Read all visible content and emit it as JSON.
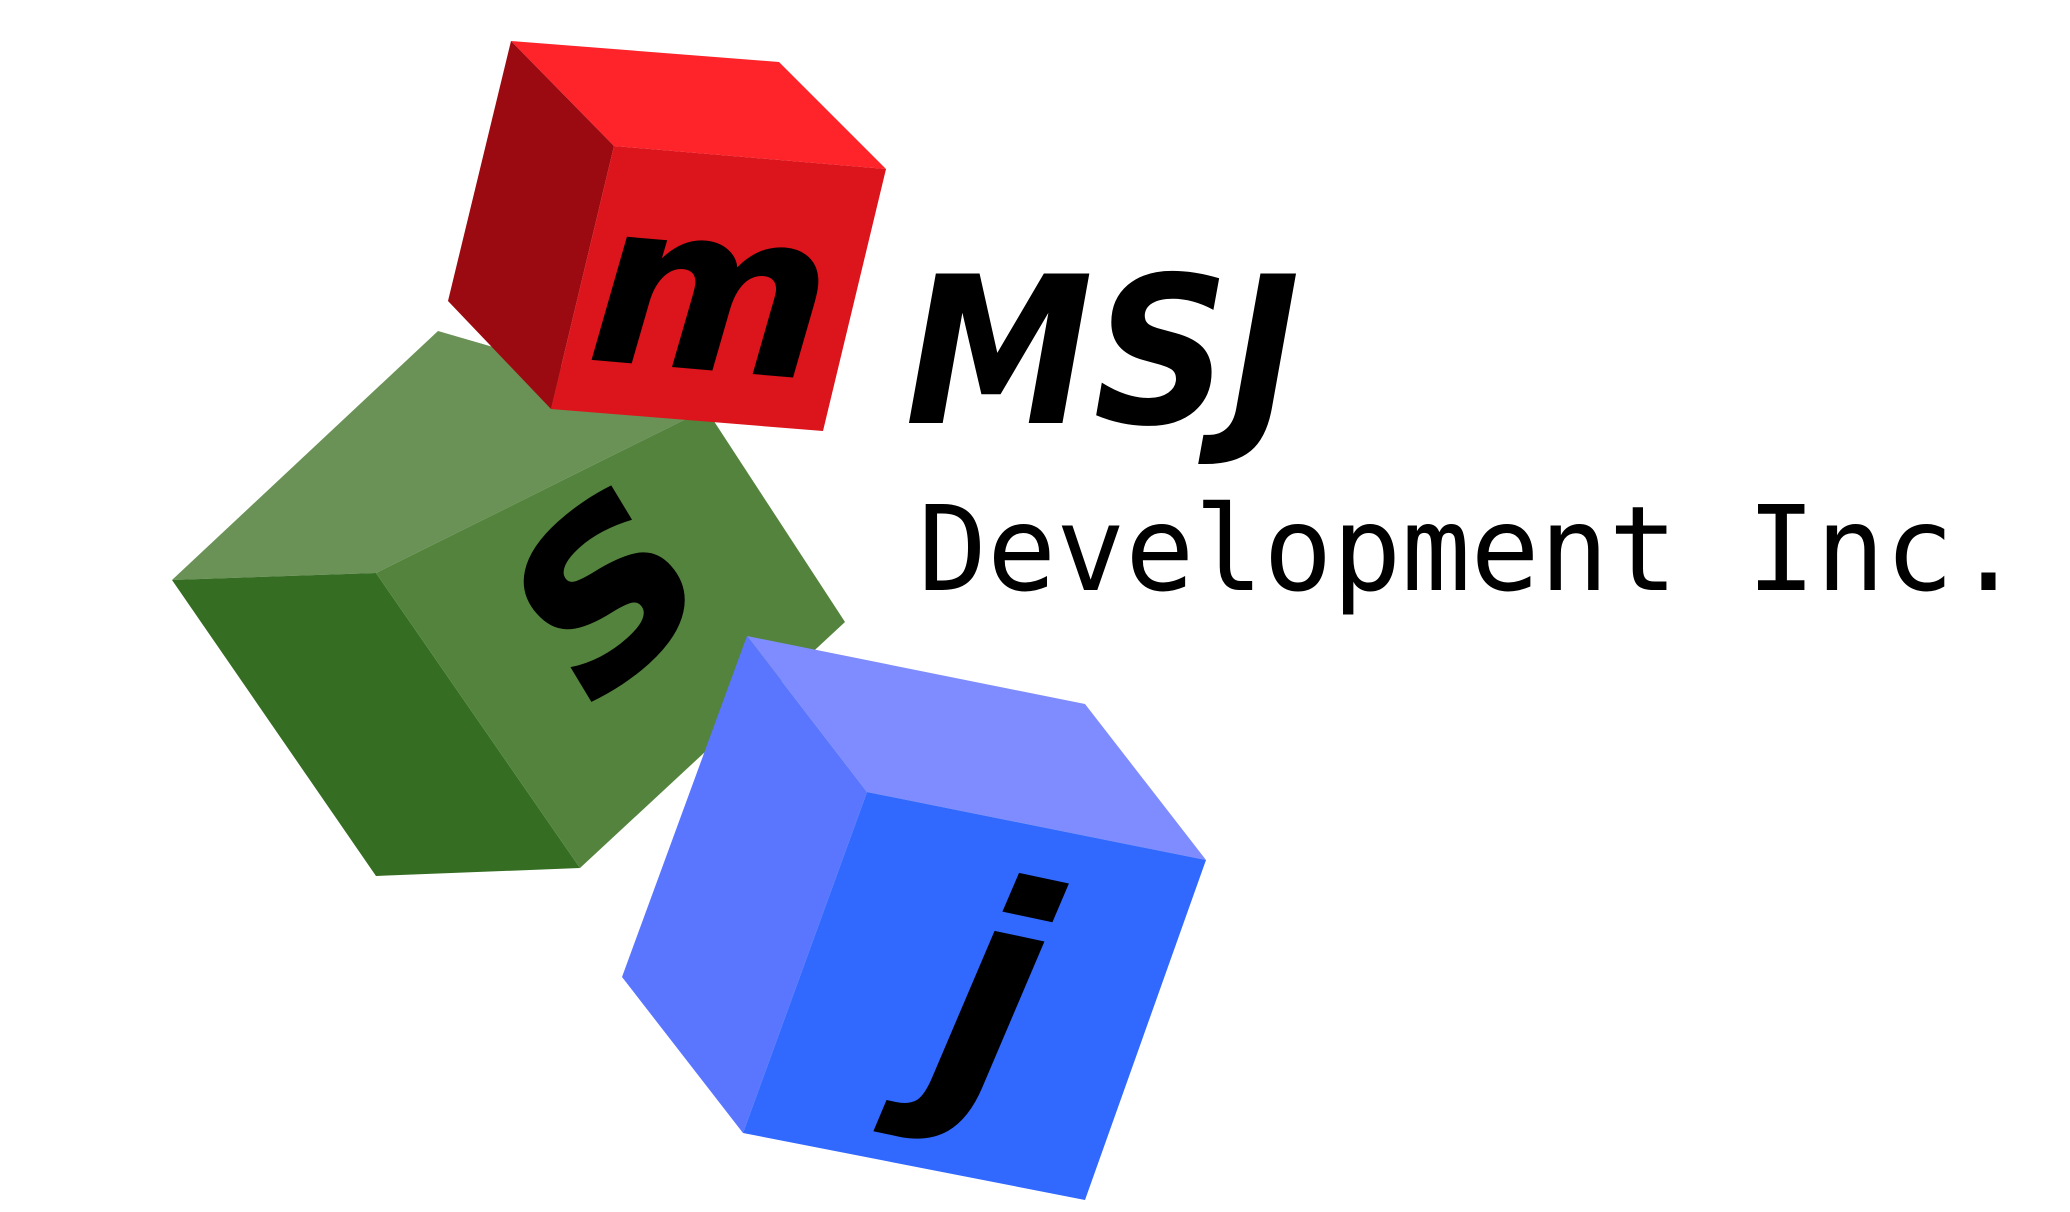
{
  "logo": {
    "cubes": [
      {
        "letter": "m",
        "colors": {
          "top": "#ff232a",
          "side": "#9a0a10",
          "front": "#dc141b"
        }
      },
      {
        "letter": "s",
        "colors": {
          "top": "#6a9156",
          "side": "#356d22",
          "front": "#53833d"
        }
      },
      {
        "letter": "j",
        "colors": {
          "top": "#7e8cff",
          "side": "#5a76ff",
          "front": "#3169ff"
        }
      }
    ]
  },
  "brand": {
    "name": "MSJ",
    "tagline": "Development Inc."
  }
}
